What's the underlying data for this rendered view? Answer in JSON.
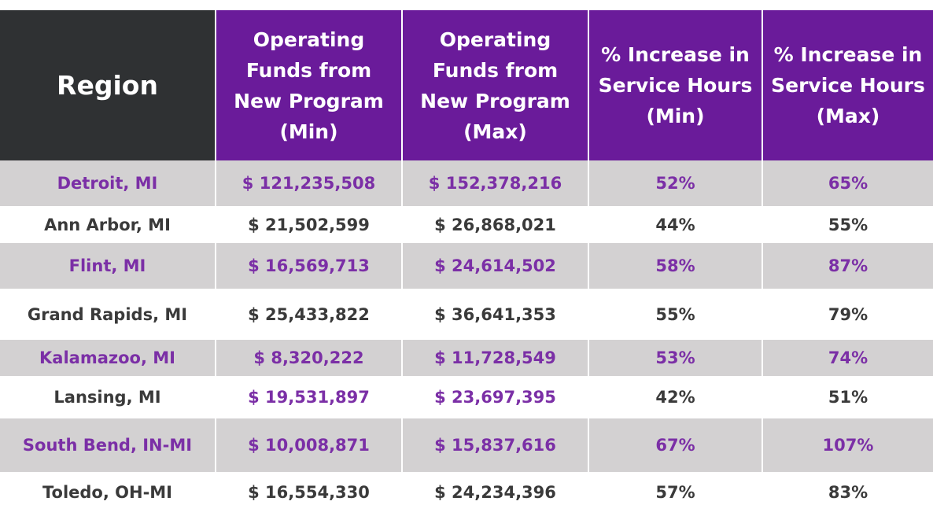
{
  "headers": {
    "region": "Region",
    "funds_min": "Operating Funds from New Program (Min)",
    "funds_max": "Operating Funds from New Program (Max)",
    "inc_min": "% Increase in Service Hours (Min)",
    "inc_max": "% Increase in Service Hours (Max)"
  },
  "rows": [
    {
      "region": "Detroit, MI",
      "funds_min": "$ 121,235,508",
      "funds_max": "$ 152,378,216",
      "inc_min": "52%",
      "inc_max": "65%",
      "shaded": true,
      "purple_money": true
    },
    {
      "region": "Ann Arbor, MI",
      "funds_min": "$ 21,502,599",
      "funds_max": "$ 26,868,021",
      "inc_min": "44%",
      "inc_max": "55%",
      "shaded": false,
      "purple_money": false
    },
    {
      "region": "Flint, MI",
      "funds_min": "$ 16,569,713",
      "funds_max": "$ 24,614,502",
      "inc_min": "58%",
      "inc_max": "87%",
      "shaded": true,
      "purple_money": true
    },
    {
      "region": "Grand Rapids, MI",
      "funds_min": "$ 25,433,822",
      "funds_max": "$ 36,641,353",
      "inc_min": "55%",
      "inc_max": "79%",
      "shaded": false,
      "purple_money": false
    },
    {
      "region": "Kalamazoo, MI",
      "funds_min": "$ 8,320,222",
      "funds_max": "$ 11,728,549",
      "inc_min": "53%",
      "inc_max": "74%",
      "shaded": true,
      "purple_money": true
    },
    {
      "region": "Lansing, MI",
      "funds_min": "$ 19,531,897",
      "funds_max": "$ 23,697,395",
      "inc_min": "42%",
      "inc_max": "51%",
      "shaded": false,
      "purple_money": true
    },
    {
      "region": "South Bend, IN-MI",
      "funds_min": "$ 10,008,871",
      "funds_max": "$ 15,837,616",
      "inc_min": "67%",
      "inc_max": "107%",
      "shaded": true,
      "purple_money": true
    },
    {
      "region": "Toledo, OH-MI",
      "funds_min": "$ 16,554,330",
      "funds_max": "$ 24,234,396",
      "inc_min": "57%",
      "inc_max": "83%",
      "shaded": false,
      "purple_money": false
    }
  ],
  "colors": {
    "header_dark": "#2f3133",
    "header_purple": "#6a1b9a",
    "row_shade": "#d3d1d2",
    "text_purple": "#7b2fa6",
    "text_dark": "#3a3a3a"
  }
}
